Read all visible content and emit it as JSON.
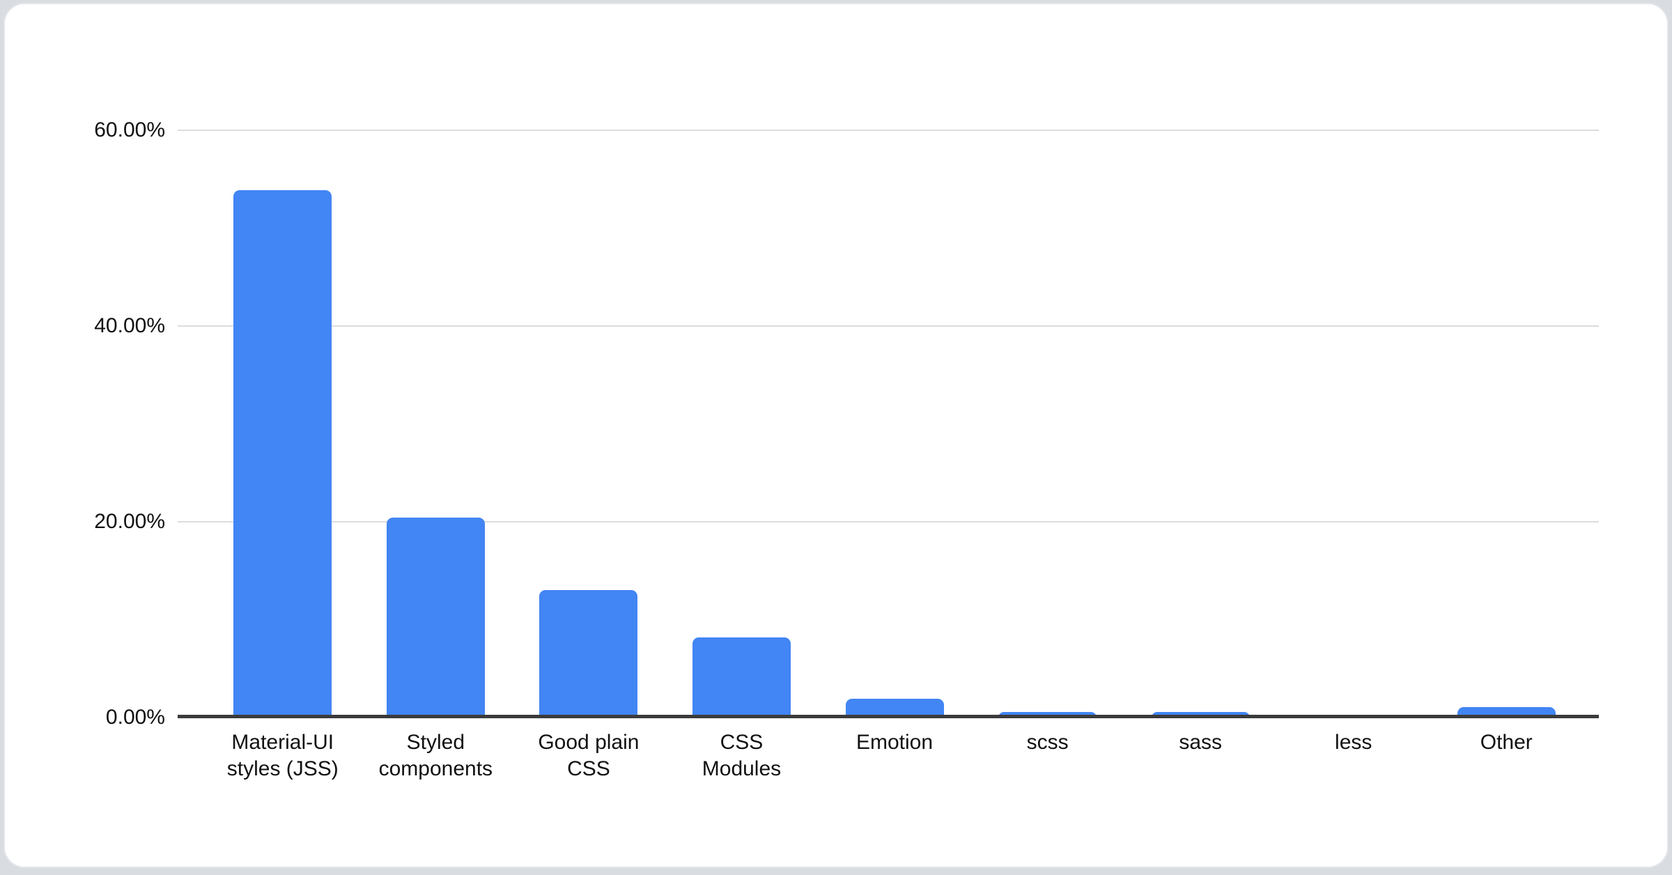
{
  "page": {
    "background_color": "#d9dde1",
    "card_color": "#ffffff"
  },
  "chart_data": {
    "type": "bar",
    "title": "",
    "categories": [
      "Material-UI\nstyles (JSS)",
      "Styled\ncomponents",
      "Good plain\nCSS",
      "CSS\nModules",
      "Emotion",
      "scss",
      "sass",
      "less",
      "Other"
    ],
    "values": [
      53.9,
      20.4,
      13.0,
      8.2,
      1.9,
      0.6,
      0.6,
      0.1,
      1.1
    ],
    "unit": "%",
    "xlabel": "",
    "ylabel": "",
    "y_ticks": [
      "60.00%",
      "40.00%",
      "20.00%",
      "0.00%"
    ],
    "y_tick_values": [
      60,
      40,
      20,
      0
    ],
    "ylim": [
      0,
      60
    ],
    "grid": true,
    "legend": "none",
    "bar_color": "#4285f4",
    "gridline_color": "#dcdcdc",
    "baseline_color": "#3b3b3b",
    "axis_text_color": "#111111"
  }
}
